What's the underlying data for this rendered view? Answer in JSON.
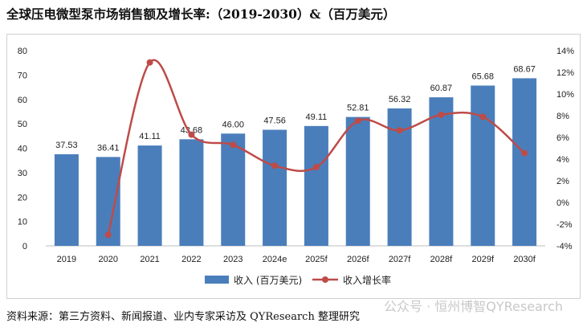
{
  "title": "全球压电微型泵市场销售额及增长率:（2019-2030）&（百万美元）",
  "source": "资料来源：第三方资料、新闻报道、业内专家采访及 QYResearch 整理研究",
  "watermark": "公众号 · 恒州博智QYResearch",
  "colors": {
    "bar": "#4a7ebb",
    "line": "#be4b48"
  },
  "chart_data": {
    "type": "bar",
    "categories": [
      "2019",
      "2020",
      "2021",
      "2022",
      "2023",
      "2024e",
      "2025f",
      "2026f",
      "2027f",
      "2028f",
      "2029f",
      "2030f"
    ],
    "series": [
      {
        "name": "收入 (百万美元)",
        "type": "bar",
        "axis": "left",
        "values": [
          37.53,
          36.41,
          41.11,
          43.68,
          46.0,
          47.56,
          49.11,
          52.81,
          56.32,
          60.87,
          65.68,
          68.67
        ],
        "labels": [
          "37.53",
          "36.41",
          "41.11",
          "43.68",
          "46.00",
          "47.56",
          "49.11",
          "52.81",
          "56.32",
          "60.87",
          "65.68",
          "68.67"
        ]
      },
      {
        "name": "收入增长率",
        "type": "line",
        "axis": "right",
        "values": [
          null,
          -2.98,
          12.91,
          6.25,
          5.31,
          3.39,
          3.26,
          7.53,
          6.65,
          8.08,
          7.9,
          4.55
        ]
      }
    ],
    "y_left": {
      "min": 0,
      "max": 80,
      "step": 10,
      "ticks": [
        "0",
        "10",
        "20",
        "30",
        "40",
        "50",
        "60",
        "70",
        "80"
      ]
    },
    "y_right": {
      "min": -4,
      "max": 14,
      "step": 2,
      "ticks": [
        "-4%",
        "-2%",
        "0%",
        "2%",
        "4%",
        "6%",
        "8%",
        "10%",
        "12%",
        "14%"
      ]
    },
    "grid": false,
    "legend_position": "bottom"
  }
}
